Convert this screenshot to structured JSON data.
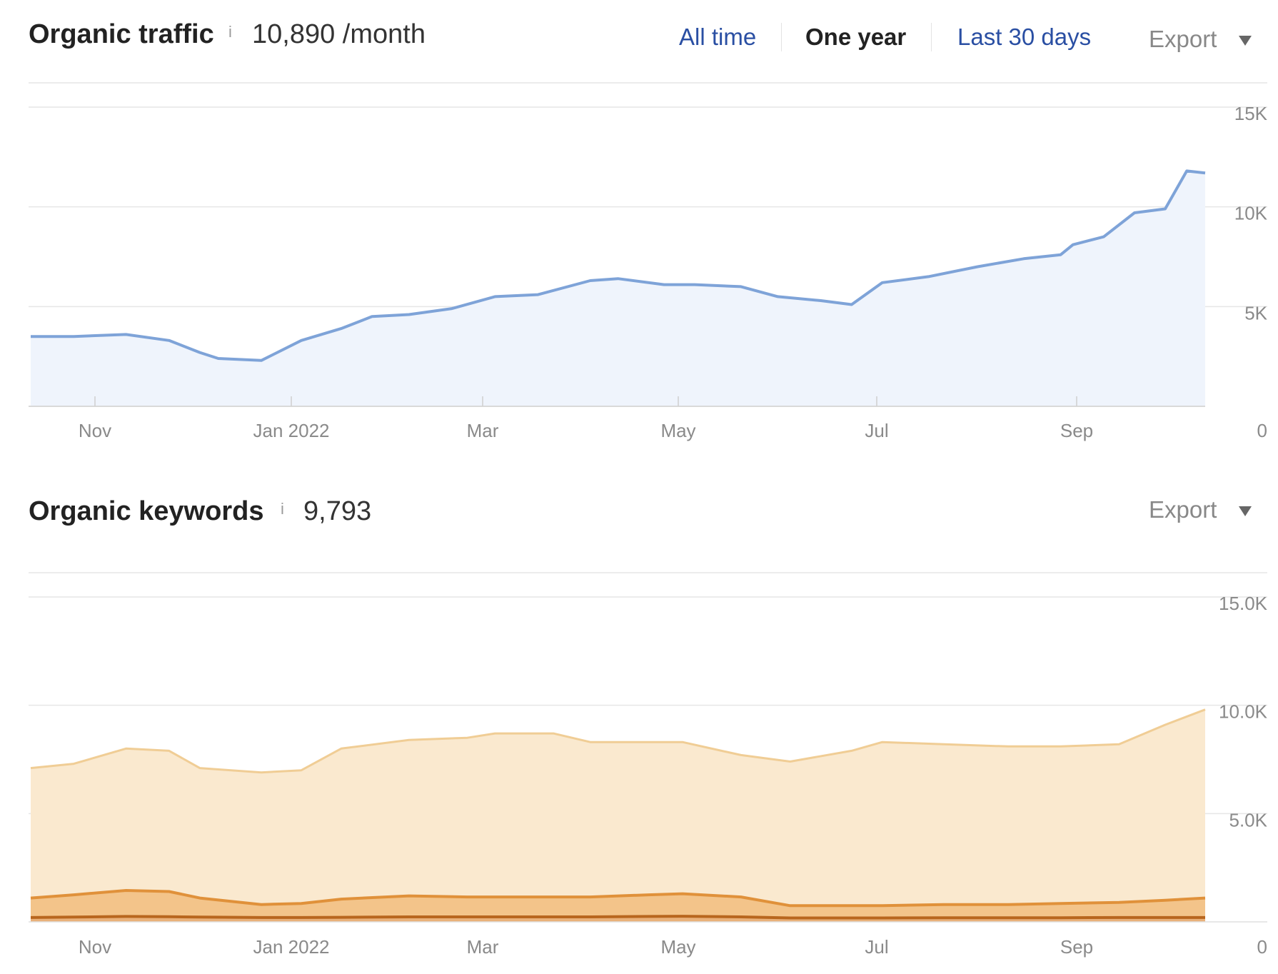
{
  "traffic": {
    "title": "Organic traffic",
    "info": "i",
    "value": "10,890 /month",
    "ranges": [
      "All time",
      "One year",
      "Last 30 days"
    ],
    "active_range": "One year",
    "export_label": "Export"
  },
  "keywords": {
    "title": "Organic keywords",
    "info": "i",
    "value": "9,793",
    "export_label": "Export"
  },
  "colors": {
    "traffic_line": "#7ea3d8",
    "traffic_fill": "#eff4fc",
    "kw_top_line": "#f0cd95",
    "kw_top_fill": "#fae9cf",
    "kw_mid_line": "#e0913a",
    "kw_mid_fill": "#f3c48a",
    "kw_low_line": "#b8661e",
    "kw_low_fill": "#e9b17a",
    "grid": "#e6e6e6",
    "link": "#2a4fa3"
  },
  "chart_data": [
    {
      "type": "line",
      "title": "Organic traffic",
      "x_ticks": [
        "Nov",
        "Jan 2022",
        "Mar",
        "May",
        "Jul",
        "Sep"
      ],
      "y_ticks": [
        "0",
        "5K",
        "10K",
        "15K"
      ],
      "ylim": [
        0,
        15000
      ],
      "grid": true,
      "series": [
        {
          "x": [
            "2021-10-01",
            "2021-10-15",
            "2021-11-01",
            "2021-11-15",
            "2021-11-25",
            "2021-12-01",
            "2021-12-15",
            "2021-12-28",
            "2022-01-10",
            "2022-01-20",
            "2022-02-01",
            "2022-02-15",
            "2022-03-01",
            "2022-03-15",
            "2022-04-01",
            "2022-04-10",
            "2022-04-25",
            "2022-05-05",
            "2022-05-20",
            "2022-06-01",
            "2022-06-15",
            "2022-06-25",
            "2022-07-05",
            "2022-07-20",
            "2022-08-05",
            "2022-08-20",
            "2022-09-01",
            "2022-09-05",
            "2022-09-15",
            "2022-09-25",
            "2022-10-05",
            "2022-10-12",
            "2022-10-18"
          ],
          "values": [
            3500,
            3500,
            3600,
            3300,
            2700,
            2400,
            2300,
            3300,
            3900,
            4500,
            4600,
            4900,
            5500,
            5600,
            6300,
            6400,
            6100,
            6100,
            6000,
            5500,
            5300,
            5100,
            6200,
            6500,
            7000,
            7400,
            7600,
            8100,
            8500,
            9700,
            9900,
            11800,
            11700
          ]
        }
      ]
    },
    {
      "type": "area",
      "title": "Organic keywords",
      "x_ticks": [
        "Nov",
        "Jan 2022",
        "Mar",
        "May",
        "Jul",
        "Sep"
      ],
      "y_ticks": [
        "0",
        "5.0K",
        "10.0K",
        "15.0K"
      ],
      "ylim": [
        0,
        15000
      ],
      "grid": true,
      "x": [
        "2021-10-01",
        "2021-10-15",
        "2021-11-01",
        "2021-11-15",
        "2021-11-25",
        "2021-12-15",
        "2021-12-28",
        "2022-01-10",
        "2022-02-01",
        "2022-02-20",
        "2022-03-01",
        "2022-03-20",
        "2022-04-01",
        "2022-04-20",
        "2022-05-01",
        "2022-05-20",
        "2022-06-05",
        "2022-06-25",
        "2022-07-05",
        "2022-07-25",
        "2022-08-15",
        "2022-09-01",
        "2022-09-20",
        "2022-10-05",
        "2022-10-18"
      ],
      "series": [
        {
          "values": [
            7100,
            7300,
            8000,
            7900,
            7100,
            6900,
            7000,
            8000,
            8400,
            8500,
            8700,
            8700,
            8300,
            8300,
            8300,
            7700,
            7400,
            7900,
            8300,
            8200,
            8100,
            8100,
            8200,
            9100,
            9800
          ]
        },
        {
          "values": [
            1100,
            1250,
            1450,
            1400,
            1100,
            800,
            850,
            1050,
            1200,
            1150,
            1150,
            1150,
            1150,
            1250,
            1300,
            1150,
            750,
            750,
            750,
            800,
            800,
            850,
            900,
            1000,
            1100
          ]
        },
        {
          "values": [
            200,
            220,
            250,
            240,
            220,
            200,
            200,
            210,
            230,
            230,
            230,
            230,
            230,
            250,
            260,
            230,
            180,
            180,
            180,
            190,
            190,
            190,
            200,
            200,
            200
          ]
        }
      ]
    }
  ]
}
